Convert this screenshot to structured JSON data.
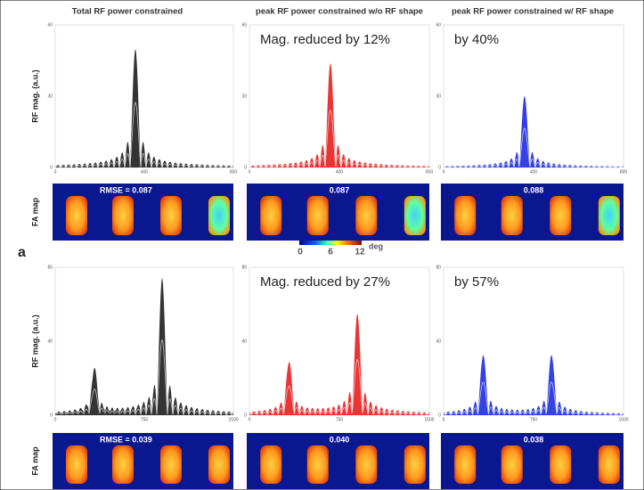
{
  "columns": [
    "Total RF power constrained",
    "peak RF power constrained w/o RF shape",
    "peak RF power constrained w/ RF shape"
  ],
  "y_axis_label": "RF mag. (a.u.)",
  "map_label": "FA map",
  "panel_label": "a",
  "colorbar": {
    "ticks": [
      "0",
      "6",
      "12"
    ],
    "unit": "deg"
  },
  "rows": [
    {
      "annotations": [
        "Mag. reduced by 12%",
        "by 40%"
      ],
      "yticks": [
        "0",
        "30",
        "60"
      ],
      "xticks": [
        "0",
        "400",
        "800"
      ],
      "rmse": [
        "RMSE = 0.087",
        "0.087",
        "0.088"
      ]
    },
    {
      "annotations": [
        "Mag. reduced by 27%",
        "by 57%"
      ],
      "yticks": [
        "0",
        "40",
        "80"
      ],
      "xticks": [
        "0",
        "750",
        "1500"
      ],
      "rmse": [
        "RMSE = 0.039",
        "0.040",
        "0.038"
      ]
    }
  ]
}
